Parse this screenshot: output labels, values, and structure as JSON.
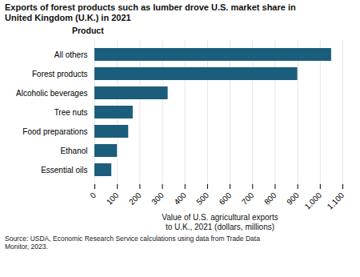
{
  "chart_data": {
    "type": "bar",
    "orientation": "horizontal",
    "title": "Exports of forest products such as lumber drove U.S. market share in\nUnited Kingdom (U.K.) in 2021",
    "categories": [
      "All others",
      "Forest products",
      "Alcoholic beverages",
      "Tree nuts",
      "Food preparations",
      "Ethanol",
      "Essential oils"
    ],
    "values": [
      1050,
      900,
      325,
      170,
      150,
      100,
      75
    ],
    "color": "#1b5e7b",
    "xlabel": "Value of U.S. agricultural exports\nto U.K., 2021 (dollars, millions)",
    "ylabel": "Product",
    "xlim": [
      0,
      1100
    ],
    "xticks": [
      0,
      100,
      200,
      300,
      400,
      500,
      600,
      700,
      800,
      900,
      {
        "value": 1000,
        "label": "1,000"
      },
      {
        "value": 1100,
        "label": "1,100"
      }
    ],
    "grid": true,
    "source": "Source: USDA, Economic Research Service calculations using data from Trade Data\nMonitor, 2023."
  }
}
